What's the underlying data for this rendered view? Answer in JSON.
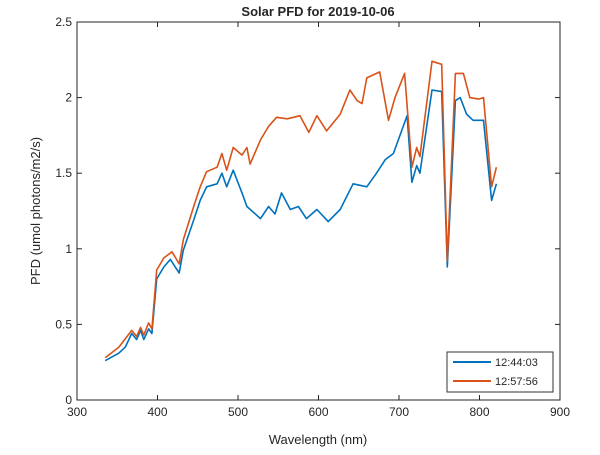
{
  "chart_data": {
    "type": "line",
    "title": "Solar PFD for 2019-10-06",
    "xlabel": "Wavelength (nm)",
    "ylabel": "PFD (umol photons/m2/s)",
    "xlim": [
      300,
      900
    ],
    "ylim": [
      0,
      2.5
    ],
    "xticks": [
      300,
      400,
      500,
      600,
      700,
      800,
      900
    ],
    "xtick_labels": [
      "300",
      "400",
      "500",
      "600",
      "700",
      "800",
      "900"
    ],
    "yticks": [
      0,
      0.5,
      1,
      1.5,
      2,
      2.5
    ],
    "ytick_labels": [
      "0",
      "0.5",
      "1",
      "1.5",
      "2",
      "2.5"
    ],
    "grid": false,
    "legend_position": "bottom-right",
    "series": [
      {
        "name": "12:44:03",
        "color": "#0072BD",
        "x": [
          335,
          352,
          360,
          368,
          374,
          379,
          383,
          389,
          393,
          399,
          408,
          416,
          422,
          427,
          432,
          445,
          453,
          461,
          474,
          480,
          486,
          494,
          505,
          511,
          528,
          538,
          546,
          554,
          565,
          575,
          585,
          598,
          612,
          627,
          643,
          660,
          672,
          683,
          693,
          710,
          716,
          722,
          726,
          741,
          753,
          760,
          770,
          776,
          784,
          792,
          805,
          815,
          821
        ],
        "y": [
          0.26,
          0.31,
          0.35,
          0.44,
          0.4,
          0.46,
          0.4,
          0.47,
          0.44,
          0.8,
          0.88,
          0.93,
          0.88,
          0.84,
          0.99,
          1.19,
          1.32,
          1.41,
          1.43,
          1.5,
          1.41,
          1.52,
          1.37,
          1.28,
          1.2,
          1.28,
          1.23,
          1.37,
          1.26,
          1.28,
          1.2,
          1.26,
          1.18,
          1.26,
          1.43,
          1.41,
          1.5,
          1.59,
          1.63,
          1.88,
          1.44,
          1.55,
          1.5,
          2.05,
          2.04,
          0.88,
          1.98,
          2.0,
          1.89,
          1.85,
          1.85,
          1.32,
          1.43
        ]
      },
      {
        "name": "12:57:56",
        "color": "#D95319",
        "x": [
          335,
          352,
          368,
          374,
          379,
          383,
          389,
          393,
          399,
          408,
          418,
          427,
          432,
          445,
          453,
          461,
          474,
          480,
          486,
          494,
          505,
          511,
          515,
          528,
          538,
          548,
          561,
          569,
          577,
          588,
          598,
          610,
          627,
          639,
          648,
          654,
          660,
          676,
          687,
          695,
          707,
          716,
          722,
          726,
          741,
          753,
          760,
          770,
          780,
          788,
          799,
          805,
          815,
          821
        ],
        "y": [
          0.28,
          0.35,
          0.46,
          0.42,
          0.48,
          0.43,
          0.51,
          0.47,
          0.86,
          0.94,
          0.98,
          0.9,
          1.06,
          1.28,
          1.41,
          1.51,
          1.54,
          1.63,
          1.52,
          1.67,
          1.62,
          1.67,
          1.56,
          1.72,
          1.81,
          1.87,
          1.86,
          1.87,
          1.88,
          1.77,
          1.88,
          1.78,
          1.89,
          2.05,
          1.98,
          1.96,
          2.13,
          2.17,
          1.85,
          2.0,
          2.16,
          1.54,
          1.67,
          1.61,
          2.24,
          2.22,
          0.92,
          2.16,
          2.16,
          2.0,
          1.99,
          2.0,
          1.41,
          1.54
        ]
      }
    ]
  }
}
